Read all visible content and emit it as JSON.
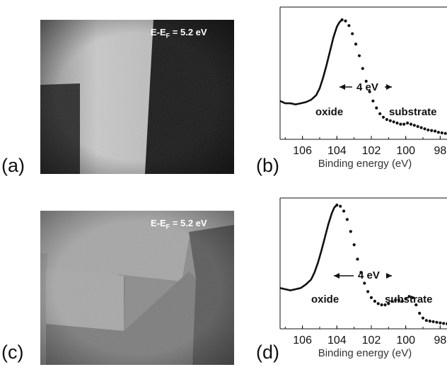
{
  "panels": {
    "a": {
      "label": "(a)",
      "energy": {
        "prefix": "E-E",
        "sub": "F",
        "suffix": " = 5.2 eV"
      }
    },
    "b": {
      "label": "(b)"
    },
    "c": {
      "label": "(c)",
      "energy": {
        "prefix": "E-E",
        "sub": "F",
        "suffix": " = 5.2 eV"
      }
    },
    "d": {
      "label": "(d)"
    }
  },
  "colors": {
    "ink": "#111111",
    "image_dark": "#141414",
    "image_bright": "#cfcfcf",
    "image_mid": "#9a9a9a",
    "image_low": "#5c5c5c"
  },
  "chart_data": [
    {
      "type": "scatter",
      "panel": "b",
      "xlabel": "Binding energy (eV)",
      "x_ticks": [
        106,
        104,
        102,
        100,
        98
      ],
      "xlim": [
        107.3,
        96.7
      ],
      "x_reversed": true,
      "ylabel": "",
      "y_ticks_shown": false,
      "annotations": {
        "oxide": "oxide",
        "substrate": "substrate",
        "separation": "4 eV"
      },
      "series": [
        {
          "x": [
            103.7,
            103.5,
            103.3,
            103.1,
            102.9,
            102.7,
            102.5,
            102.3,
            102.1,
            101.9,
            101.7,
            101.5,
            101.3,
            101.1,
            100.9,
            100.7,
            100.5,
            100.3,
            100.1,
            99.9,
            99.7,
            99.5,
            99.3,
            99.1,
            98.9,
            98.7,
            98.5,
            98.3,
            98.1,
            97.9,
            97.7,
            97.5,
            97.3
          ],
          "y": [
            1.0,
            0.99,
            0.95,
            0.88,
            0.79,
            0.69,
            0.58,
            0.47,
            0.38,
            0.3,
            0.24,
            0.19,
            0.16,
            0.14,
            0.13,
            0.12,
            0.11,
            0.1,
            0.1,
            0.11,
            0.1,
            0.09,
            0.08,
            0.07,
            0.06,
            0.05,
            0.045,
            0.04,
            0.03,
            0.025,
            0.02,
            0.015,
            0.01
          ]
        }
      ],
      "line_segment": {
        "x": [
          107.3,
          107.0,
          106.7,
          106.4,
          106.1,
          105.8,
          105.5,
          105.2,
          105.0,
          104.8,
          104.6,
          104.4,
          104.2,
          104.0,
          103.85,
          103.7
        ],
        "y": [
          0.3,
          0.28,
          0.28,
          0.27,
          0.28,
          0.29,
          0.31,
          0.35,
          0.41,
          0.5,
          0.61,
          0.73,
          0.85,
          0.94,
          0.98,
          1.0
        ]
      }
    },
    {
      "type": "scatter",
      "panel": "d",
      "xlabel": "Binding energy (eV)",
      "x_ticks": [
        106,
        104,
        102,
        100,
        98
      ],
      "xlim": [
        107.3,
        96.7
      ],
      "x_reversed": true,
      "ylabel": "",
      "y_ticks_shown": false,
      "annotations": {
        "oxide": "oxide",
        "substrate": "substrate",
        "separation": "4 eV"
      },
      "series": [
        {
          "x": [
            104.0,
            103.8,
            103.6,
            103.4,
            103.2,
            103.0,
            102.8,
            102.6,
            102.4,
            102.2,
            102.0,
            101.8,
            101.6,
            101.4,
            101.2,
            101.0,
            100.8,
            100.6,
            100.4,
            100.2,
            100.0,
            99.8,
            99.6,
            99.4,
            99.2,
            99.0,
            98.8,
            98.6,
            98.4,
            98.2,
            98.0,
            97.8,
            97.6,
            97.4,
            97.2
          ],
          "y": [
            1.0,
            0.99,
            0.95,
            0.88,
            0.78,
            0.67,
            0.55,
            0.44,
            0.35,
            0.28,
            0.23,
            0.2,
            0.18,
            0.17,
            0.17,
            0.18,
            0.2,
            0.21,
            0.21,
            0.2,
            0.22,
            0.24,
            0.23,
            0.17,
            0.1,
            0.06,
            0.04,
            0.035,
            0.03,
            0.025,
            0.02,
            0.015,
            0.012,
            0.01,
            0.008
          ]
        }
      ],
      "line_segment": {
        "x": [
          107.3,
          107.0,
          106.7,
          106.4,
          106.1,
          105.8,
          105.5,
          105.3,
          105.1,
          104.9,
          104.7,
          104.5,
          104.3,
          104.15,
          104.0
        ],
        "y": [
          0.31,
          0.3,
          0.29,
          0.3,
          0.31,
          0.34,
          0.38,
          0.44,
          0.52,
          0.62,
          0.73,
          0.84,
          0.93,
          0.98,
          1.0
        ]
      }
    }
  ]
}
